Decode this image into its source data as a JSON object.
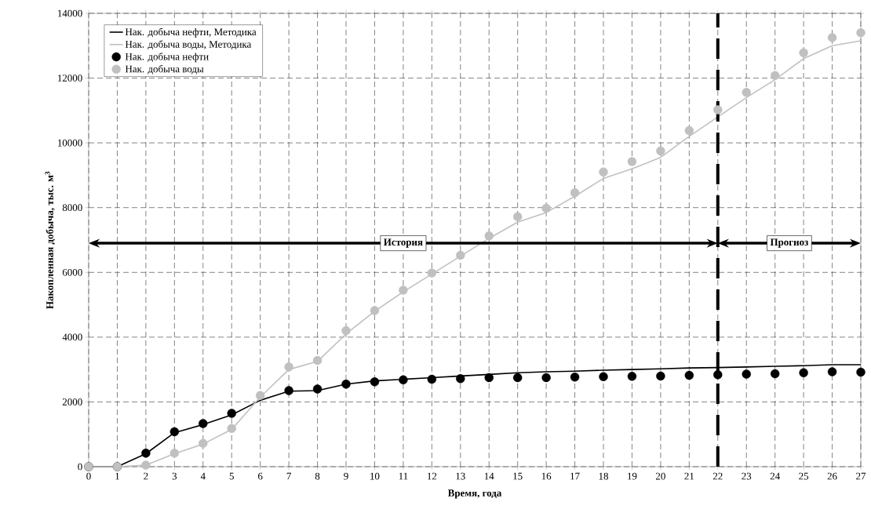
{
  "chart_data": {
    "type": "line",
    "xlabel": "Время, года",
    "ylabel": "Накопленная добыча, тыс. м$^{3}$",
    "x": [
      0,
      1,
      2,
      3,
      4,
      5,
      6,
      7,
      8,
      9,
      10,
      11,
      12,
      13,
      14,
      15,
      16,
      17,
      18,
      19,
      20,
      21,
      22,
      23,
      24,
      25,
      26,
      27
    ],
    "xlim": [
      0,
      27
    ],
    "xticks": [
      0,
      1,
      2,
      3,
      4,
      5,
      6,
      7,
      8,
      9,
      10,
      11,
      12,
      13,
      14,
      15,
      16,
      17,
      18,
      19,
      20,
      21,
      22,
      23,
      24,
      25,
      26,
      27
    ],
    "ylim": [
      0,
      14000
    ],
    "yticks": [
      0,
      2000,
      4000,
      6000,
      8000,
      10000,
      12000,
      14000
    ],
    "grid": true,
    "legend": "top left",
    "series": [
      {
        "name": "Нак. добыча нефти, Методика",
        "color": "#000000",
        "marker": "none",
        "values": [
          0,
          0,
          400,
          1050,
          1300,
          1600,
          2050,
          2330,
          2350,
          2550,
          2650,
          2700,
          2750,
          2800,
          2850,
          2900,
          2930,
          2950,
          2980,
          3000,
          3020,
          3050,
          3060,
          3080,
          3100,
          3120,
          3150,
          3150
        ]
      },
      {
        "name": "Нак. добыча воды, Методика",
        "color": "#c0c0c0",
        "marker": "none",
        "values": [
          0,
          0,
          50,
          400,
          700,
          1150,
          2150,
          3000,
          3250,
          4100,
          4800,
          5400,
          5950,
          6500,
          7050,
          7550,
          7850,
          8350,
          8900,
          9200,
          9550,
          10200,
          10800,
          11400,
          11950,
          12600,
          13000,
          13150
        ]
      },
      {
        "name": "Нак. добыча нефти",
        "type": "scatter",
        "color": "#000000",
        "marker": "circle",
        "values": [
          0,
          0,
          420,
          1080,
          1330,
          1650,
          null,
          2350,
          2400,
          2550,
          2620,
          2680,
          2700,
          2720,
          2750,
          2750,
          2750,
          2770,
          2780,
          2790,
          2800,
          2820,
          2840,
          2860,
          2870,
          2900,
          2930,
          2920
        ]
      },
      {
        "name": "Нак. добыча воды",
        "type": "scatter",
        "color": "#c0c0c0",
        "marker": "circle",
        "values": [
          0,
          0,
          50,
          420,
          720,
          1180,
          2200,
          3080,
          3280,
          4200,
          4820,
          5450,
          5980,
          6530,
          7130,
          7720,
          7980,
          8460,
          9100,
          9420,
          9750,
          10380,
          11020,
          11560,
          12080,
          12780,
          13250,
          13400
        ]
      }
    ],
    "ref_lines": [
      {
        "axis": "x",
        "value": 22,
        "color": "#000000",
        "line_style": "dashed"
      }
    ],
    "annotations": [
      "История",
      "Прогноз"
    ]
  }
}
